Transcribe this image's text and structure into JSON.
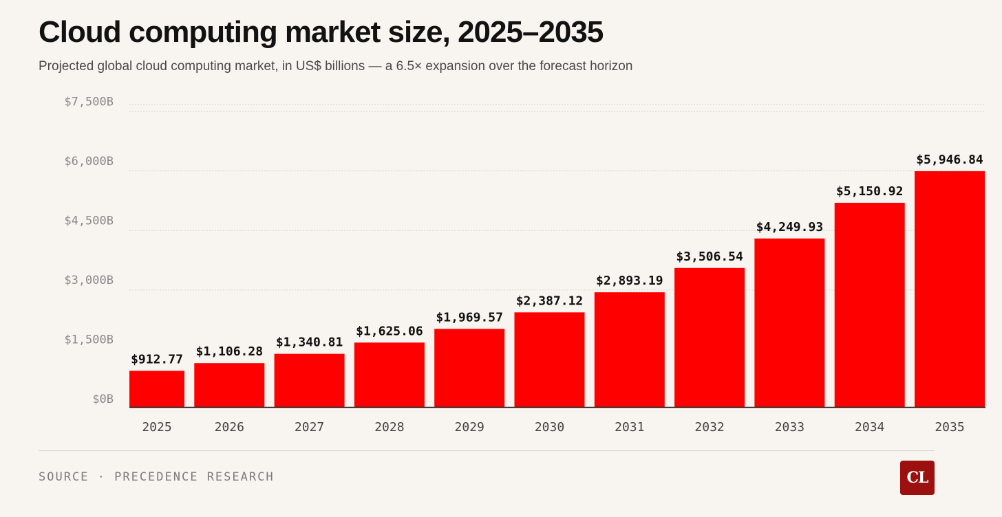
{
  "header": {
    "title": "Cloud computing market size, 2025–2035",
    "subtitle": "Projected global cloud computing market, in US$ billions — a 6.5× expansion over the forecast horizon"
  },
  "footer": {
    "source": "SOURCE · PRECEDENCE RESEARCH",
    "logo_text": "CL"
  },
  "colors": {
    "bar": "#ff0000",
    "gridline": "#d6d2cb",
    "axis_line": "#1a1a1a",
    "logo_bg": "#9c1010"
  },
  "chart_data": {
    "type": "bar",
    "title": "Cloud computing market size, 2025–2035",
    "subtitle": "Projected global cloud computing market, in US$ billions — a 6.5× expansion over the forecast horizon",
    "xlabel": "",
    "ylabel": "",
    "categories": [
      "2025",
      "2026",
      "2027",
      "2028",
      "2029",
      "2030",
      "2031",
      "2032",
      "2033",
      "2034",
      "2035"
    ],
    "values": [
      912.77,
      1106.28,
      1340.81,
      1625.06,
      1969.57,
      2387.12,
      2893.19,
      3506.54,
      4249.93,
      5150.92,
      5946.84
    ],
    "data_labels": [
      "$912.77",
      "$1,106.28",
      "$1,340.81",
      "$1,625.06",
      "$1,969.57",
      "$2,387.12",
      "$2,893.19",
      "$3,506.54",
      "$4,249.93",
      "$5,150.92",
      "$5,946.84"
    ],
    "y_ticks": [
      0,
      1500,
      3000,
      4500,
      6000,
      7500
    ],
    "y_tick_labels": [
      "$0B",
      "$1,500B",
      "$3,000B",
      "$4,500B",
      "$6,000B",
      "$7,500B"
    ],
    "ylim": [
      0,
      7500
    ],
    "grid": true,
    "legend": "none"
  }
}
